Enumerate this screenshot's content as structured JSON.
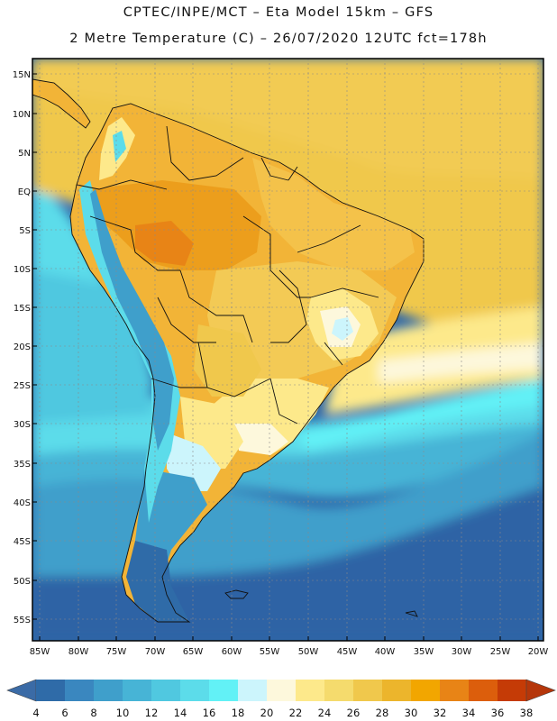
{
  "header": {
    "line1": "CPTEC/INPE/MCT –  Eta Model 15km – GFS",
    "line2": "2 Metre Temperature (C) – 26/07/2020 12UTC fct=178h"
  },
  "lat_labels": [
    "15N",
    "10N",
    "5N",
    "EQ",
    "5S",
    "10S",
    "15S",
    "20S",
    "25S",
    "30S",
    "35S",
    "40S",
    "45S",
    "50S",
    "55S"
  ],
  "lon_labels": [
    "85W",
    "80W",
    "75W",
    "70W",
    "65W",
    "60W",
    "55W",
    "50W",
    "45W",
    "40W",
    "35W",
    "30W",
    "25W",
    "20W"
  ],
  "colorbar": {
    "labels": [
      "4",
      "6",
      "8",
      "10",
      "12",
      "14",
      "16",
      "18",
      "20",
      "22",
      "24",
      "26",
      "28",
      "30",
      "32",
      "34",
      "36",
      "38"
    ],
    "colors": [
      "#2f6ba8",
      "#3a87bf",
      "#3f9fcb",
      "#47b4d6",
      "#50c8e0",
      "#5cdcea",
      "#62f1f6",
      "#ccf5fc",
      "#fdf8dc",
      "#fde98b",
      "#f5db6d",
      "#f0c84c",
      "#ecb52c",
      "#f2a600",
      "#e88416",
      "#dc5e0c",
      "#c53b06"
    ],
    "low_color": "#3b6ba6",
    "high_color": "#b5360a"
  }
}
